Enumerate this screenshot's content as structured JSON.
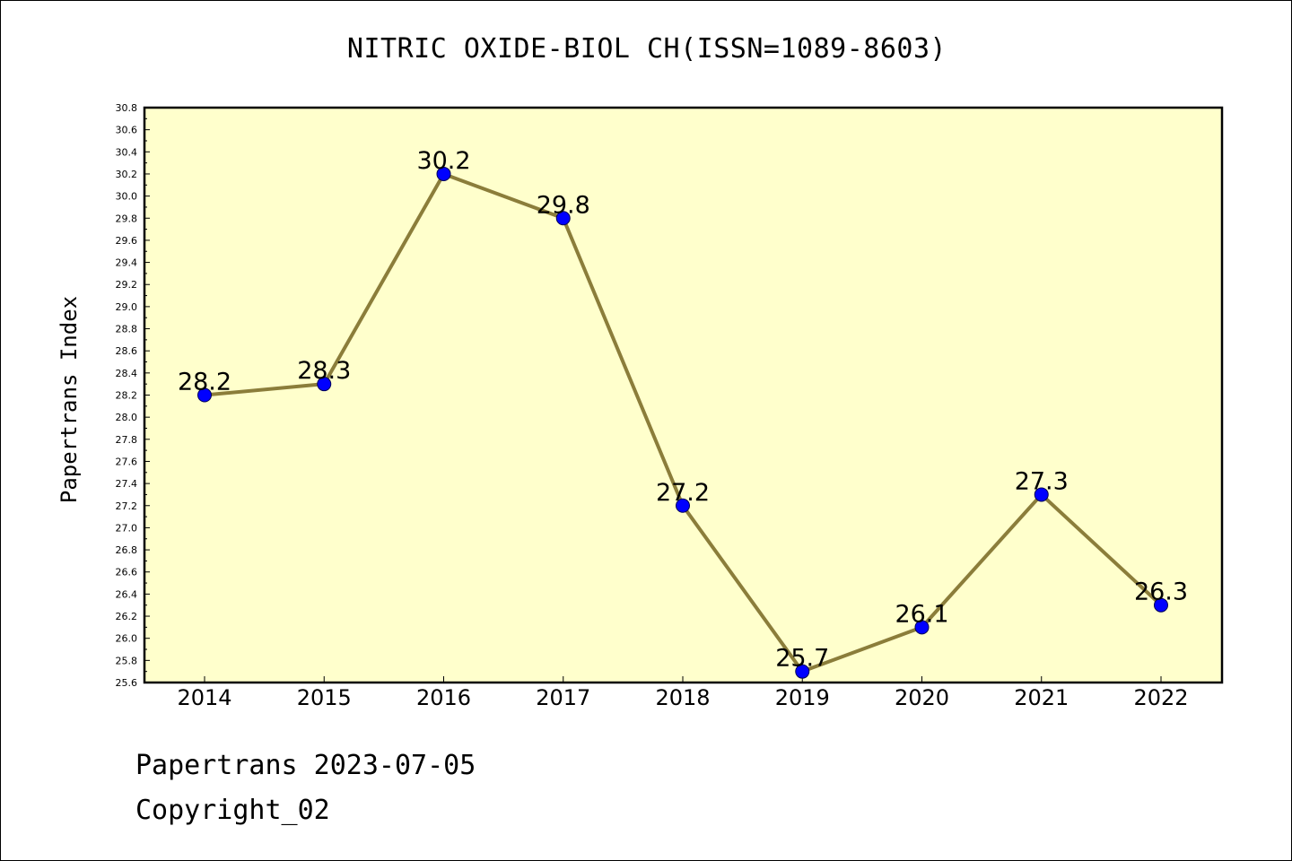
{
  "chart_data": {
    "type": "line",
    "title": "NITRIC OXIDE-BIOL CH(ISSN=1089-8603)",
    "xlabel": "",
    "ylabel": "Papertrans Index",
    "categories": [
      "2014",
      "2015",
      "2016",
      "2017",
      "2018",
      "2019",
      "2020",
      "2021",
      "2022"
    ],
    "values": [
      28.2,
      28.3,
      30.2,
      29.8,
      27.2,
      25.7,
      26.1,
      27.3,
      26.3
    ],
    "data_labels": [
      "28.2",
      "28.3",
      "30.2",
      "29.8",
      "27.2",
      "25.7",
      "26.1",
      "27.3",
      "26.3"
    ],
    "ylim": [
      25.6,
      30.8
    ],
    "yticks": [
      "25.6",
      "25.8",
      "26.0",
      "26.2",
      "26.4",
      "26.6",
      "26.8",
      "27.0",
      "27.2",
      "27.4",
      "27.6",
      "27.8",
      "28.0",
      "28.2",
      "28.4",
      "28.6",
      "28.8",
      "29.0",
      "29.2",
      "29.4",
      "29.6",
      "29.8",
      "30.0",
      "30.2",
      "30.4",
      "30.6",
      "30.8"
    ],
    "grid": false,
    "colors": {
      "plot_background": "#ffffcc",
      "line": "#8b7d3a",
      "marker": "#0000ff"
    }
  },
  "footer": {
    "date_line": "Papertrans 2023-07-05",
    "copyright_line": "Copyright_02"
  }
}
